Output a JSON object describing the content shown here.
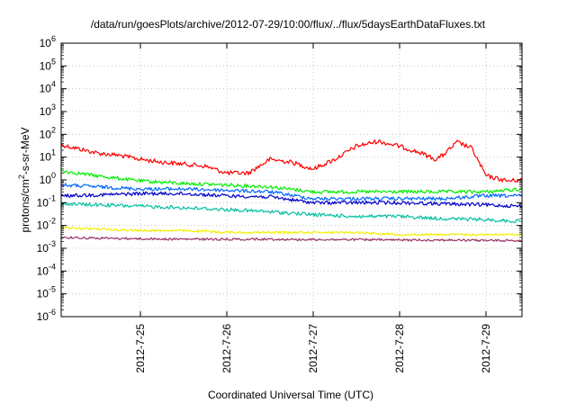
{
  "chart_data": {
    "type": "line",
    "title": "/data/run/goesPlots/archive/2012-07-29/10:00/flux/../flux/5daysEarthDataFluxes.txt",
    "xlabel": "Coordinated Universal Time (UTC)",
    "ylabel_parts": [
      "protons/cm",
      "2",
      "-s-sr-MeV"
    ],
    "y_scale": "log",
    "ylim": [
      1e-06,
      1000000.0
    ],
    "y_ticks": [
      {
        "base": "10",
        "exp": "-6",
        "value": 1e-06
      },
      {
        "base": "10",
        "exp": "-5",
        "value": 1e-05
      },
      {
        "base": "10",
        "exp": "-4",
        "value": 0.0001
      },
      {
        "base": "10",
        "exp": "-3",
        "value": 0.001
      },
      {
        "base": "10",
        "exp": "-2",
        "value": 0.01
      },
      {
        "base": "10",
        "exp": "-1",
        "value": 0.1
      },
      {
        "base": "10",
        "exp": "0",
        "value": 1
      },
      {
        "base": "10",
        "exp": "1",
        "value": 10
      },
      {
        "base": "10",
        "exp": "2",
        "value": 100
      },
      {
        "base": "10",
        "exp": "3",
        "value": 1000
      },
      {
        "base": "10",
        "exp": "4",
        "value": 10000
      },
      {
        "base": "10",
        "exp": "5",
        "value": 100000
      },
      {
        "base": "10",
        "exp": "6",
        "value": 1000000
      }
    ],
    "xlim": [
      "2012-07-24 02:00",
      "2012-07-29 10:00"
    ],
    "x_ticks": [
      {
        "label": "2012-7-25",
        "value": "2012-07-25 00:00"
      },
      {
        "label": "2012-7-26",
        "value": "2012-07-26 00:00"
      },
      {
        "label": "2012-7-27",
        "value": "2012-07-27 00:00"
      },
      {
        "label": "2012-7-28",
        "value": "2012-07-28 00:00"
      },
      {
        "label": "2012-7-29",
        "value": "2012-07-29 00:00"
      }
    ],
    "grid": true,
    "series": [
      {
        "color": "#ff0000",
        "points": [
          [
            "2012-07-24 02:00",
            35
          ],
          [
            "2012-07-24 06:00",
            25
          ],
          [
            "2012-07-24 12:00",
            15
          ],
          [
            "2012-07-24 18:00",
            12
          ],
          [
            "2012-07-25 00:00",
            8
          ],
          [
            "2012-07-25 06:00",
            6
          ],
          [
            "2012-07-25 12:00",
            5
          ],
          [
            "2012-07-25 18:00",
            4
          ],
          [
            "2012-07-26 00:00",
            2
          ],
          [
            "2012-07-26 06:00",
            2
          ],
          [
            "2012-07-26 12:00",
            8
          ],
          [
            "2012-07-26 18:00",
            6
          ],
          [
            "2012-07-27 00:00",
            3
          ],
          [
            "2012-07-27 06:00",
            8
          ],
          [
            "2012-07-27 12:00",
            30
          ],
          [
            "2012-07-27 18:00",
            50
          ],
          [
            "2012-07-28 00:00",
            30
          ],
          [
            "2012-07-28 06:00",
            15
          ],
          [
            "2012-07-28 10:00",
            8
          ],
          [
            "2012-07-28 12:00",
            12
          ],
          [
            "2012-07-28 16:00",
            45
          ],
          [
            "2012-07-28 20:00",
            25
          ],
          [
            "2012-07-29 00:00",
            1.5
          ],
          [
            "2012-07-29 06:00",
            0.9
          ],
          [
            "2012-07-29 10:00",
            1
          ]
        ]
      },
      {
        "color": "#00ee00",
        "points": [
          [
            "2012-07-24 02:00",
            2.5
          ],
          [
            "2012-07-24 12:00",
            1.5
          ],
          [
            "2012-07-25 00:00",
            0.9
          ],
          [
            "2012-07-25 12:00",
            0.7
          ],
          [
            "2012-07-26 00:00",
            0.6
          ],
          [
            "2012-07-26 12:00",
            0.5
          ],
          [
            "2012-07-27 00:00",
            0.3
          ],
          [
            "2012-07-27 12:00",
            0.3
          ],
          [
            "2012-07-28 00:00",
            0.3
          ],
          [
            "2012-07-28 12:00",
            0.3
          ],
          [
            "2012-07-29 00:00",
            0.3
          ],
          [
            "2012-07-29 10:00",
            0.4
          ]
        ]
      },
      {
        "color": "#0066ff",
        "points": [
          [
            "2012-07-24 02:00",
            0.6
          ],
          [
            "2012-07-24 12:00",
            0.5
          ],
          [
            "2012-07-25 00:00",
            0.4
          ],
          [
            "2012-07-25 12:00",
            0.4
          ],
          [
            "2012-07-26 00:00",
            0.35
          ],
          [
            "2012-07-26 12:00",
            0.3
          ],
          [
            "2012-07-27 00:00",
            0.15
          ],
          [
            "2012-07-27 12:00",
            0.15
          ],
          [
            "2012-07-28 00:00",
            0.15
          ],
          [
            "2012-07-28 12:00",
            0.15
          ],
          [
            "2012-07-29 00:00",
            0.2
          ],
          [
            "2012-07-29 10:00",
            0.2
          ]
        ]
      },
      {
        "color": "#0000cc",
        "points": [
          [
            "2012-07-24 02:00",
            0.2
          ],
          [
            "2012-07-24 12:00",
            0.22
          ],
          [
            "2012-07-25 00:00",
            0.25
          ],
          [
            "2012-07-25 12:00",
            0.25
          ],
          [
            "2012-07-26 00:00",
            0.2
          ],
          [
            "2012-07-26 12:00",
            0.18
          ],
          [
            "2012-07-27 00:00",
            0.1
          ],
          [
            "2012-07-27 12:00",
            0.1
          ],
          [
            "2012-07-28 00:00",
            0.1
          ],
          [
            "2012-07-28 12:00",
            0.09
          ],
          [
            "2012-07-29 00:00",
            0.08
          ],
          [
            "2012-07-29 10:00",
            0.07
          ]
        ]
      },
      {
        "color": "#00c0a0",
        "points": [
          [
            "2012-07-24 02:00",
            0.09
          ],
          [
            "2012-07-24 12:00",
            0.08
          ],
          [
            "2012-07-25 00:00",
            0.07
          ],
          [
            "2012-07-25 12:00",
            0.06
          ],
          [
            "2012-07-26 00:00",
            0.05
          ],
          [
            "2012-07-26 12:00",
            0.04
          ],
          [
            "2012-07-27 00:00",
            0.03
          ],
          [
            "2012-07-27 12:00",
            0.025
          ],
          [
            "2012-07-28 00:00",
            0.025
          ],
          [
            "2012-07-28 12:00",
            0.02
          ],
          [
            "2012-07-29 00:00",
            0.018
          ],
          [
            "2012-07-29 10:00",
            0.015
          ]
        ]
      },
      {
        "color": "#f0f000",
        "points": [
          [
            "2012-07-24 02:00",
            0.008
          ],
          [
            "2012-07-24 12:00",
            0.007
          ],
          [
            "2012-07-25 00:00",
            0.006
          ],
          [
            "2012-07-25 12:00",
            0.006
          ],
          [
            "2012-07-26 00:00",
            0.005
          ],
          [
            "2012-07-26 12:00",
            0.005
          ],
          [
            "2012-07-27 00:00",
            0.005
          ],
          [
            "2012-07-27 12:00",
            0.005
          ],
          [
            "2012-07-28 00:00",
            0.004
          ],
          [
            "2012-07-28 12:00",
            0.004
          ],
          [
            "2012-07-29 00:00",
            0.004
          ],
          [
            "2012-07-29 10:00",
            0.004
          ]
        ]
      },
      {
        "color": "#993366",
        "points": [
          [
            "2012-07-24 02:00",
            0.003
          ],
          [
            "2012-07-24 12:00",
            0.0028
          ],
          [
            "2012-07-25 00:00",
            0.0026
          ],
          [
            "2012-07-25 12:00",
            0.0025
          ],
          [
            "2012-07-26 00:00",
            0.0025
          ],
          [
            "2012-07-26 12:00",
            0.0025
          ],
          [
            "2012-07-27 00:00",
            0.0024
          ],
          [
            "2012-07-27 12:00",
            0.0024
          ],
          [
            "2012-07-28 00:00",
            0.0023
          ],
          [
            "2012-07-28 12:00",
            0.0023
          ],
          [
            "2012-07-29 00:00",
            0.0022
          ],
          [
            "2012-07-29 10:00",
            0.0022
          ]
        ]
      }
    ]
  }
}
